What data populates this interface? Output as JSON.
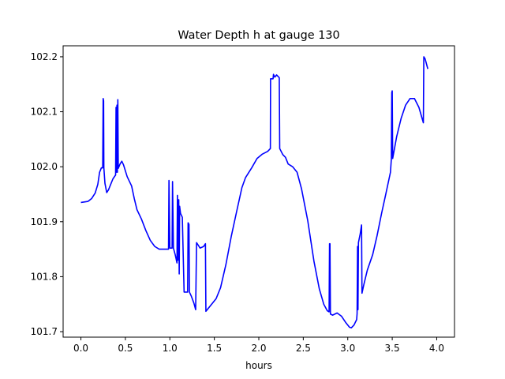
{
  "chart_data": {
    "type": "line",
    "title": "Water Depth h at gauge 130",
    "xlabel": "hours",
    "ylabel": "",
    "xlim": [
      -0.2,
      4.2
    ],
    "ylim": [
      101.69,
      102.22
    ],
    "x_ticks": [
      0.0,
      0.5,
      1.0,
      1.5,
      2.0,
      2.5,
      3.0,
      3.5,
      4.0
    ],
    "x_tick_labels": [
      "0.0",
      "0.5",
      "1.0",
      "1.5",
      "2.0",
      "2.5",
      "3.0",
      "3.5",
      "4.0"
    ],
    "y_ticks": [
      101.7,
      101.8,
      101.9,
      102.0,
      102.1,
      102.2
    ],
    "y_tick_labels": [
      "101.7",
      "101.8",
      "101.9",
      "102.0",
      "102.1",
      "102.2"
    ],
    "grid": false,
    "legend": "none",
    "series": [
      {
        "color": "#0000ff",
        "points": [
          [
            0.0,
            101.935
          ],
          [
            0.08,
            101.937
          ],
          [
            0.12,
            101.942
          ],
          [
            0.16,
            101.952
          ],
          [
            0.19,
            101.968
          ],
          [
            0.21,
            101.99
          ],
          [
            0.23,
            101.998
          ],
          [
            0.245,
            101.998
          ],
          [
            0.25,
            102.124
          ],
          [
            0.255,
            102.12
          ],
          [
            0.258,
            101.998
          ],
          [
            0.27,
            101.97
          ],
          [
            0.29,
            101.953
          ],
          [
            0.31,
            101.958
          ],
          [
            0.33,
            101.966
          ],
          [
            0.36,
            101.978
          ],
          [
            0.39,
            101.985
          ],
          [
            0.395,
            102.108
          ],
          [
            0.4,
            101.99
          ],
          [
            0.405,
            102.112
          ],
          [
            0.41,
            101.99
          ],
          [
            0.415,
            102.122
          ],
          [
            0.42,
            101.997
          ],
          [
            0.44,
            102.005
          ],
          [
            0.46,
            102.01
          ],
          [
            0.48,
            102.003
          ],
          [
            0.52,
            101.982
          ],
          [
            0.57,
            101.965
          ],
          [
            0.6,
            101.942
          ],
          [
            0.63,
            101.922
          ],
          [
            0.68,
            101.905
          ],
          [
            0.73,
            101.884
          ],
          [
            0.78,
            101.866
          ],
          [
            0.83,
            101.855
          ],
          [
            0.88,
            101.85
          ],
          [
            0.985,
            101.85
          ],
          [
            0.99,
            101.975
          ],
          [
            1.0,
            101.852
          ],
          [
            1.025,
            101.852
          ],
          [
            1.03,
            101.973
          ],
          [
            1.04,
            101.852
          ],
          [
            1.06,
            101.84
          ],
          [
            1.08,
            101.825
          ],
          [
            1.085,
            101.948
          ],
          [
            1.09,
            101.83
          ],
          [
            1.1,
            101.94
          ],
          [
            1.105,
            101.805
          ],
          [
            1.11,
            101.928
          ],
          [
            1.12,
            101.915
          ],
          [
            1.14,
            101.908
          ],
          [
            1.16,
            101.772
          ],
          [
            1.2,
            101.772
          ],
          [
            1.205,
            101.898
          ],
          [
            1.215,
            101.895
          ],
          [
            1.22,
            101.772
          ],
          [
            1.24,
            101.765
          ],
          [
            1.27,
            101.752
          ],
          [
            1.29,
            101.74
          ],
          [
            1.3,
            101.862
          ],
          [
            1.34,
            101.852
          ],
          [
            1.38,
            101.855
          ],
          [
            1.4,
            101.86
          ],
          [
            1.405,
            101.737
          ],
          [
            1.42,
            101.74
          ],
          [
            1.46,
            101.748
          ],
          [
            1.52,
            101.76
          ],
          [
            1.57,
            101.78
          ],
          [
            1.63,
            101.822
          ],
          [
            1.69,
            101.873
          ],
          [
            1.75,
            101.918
          ],
          [
            1.81,
            101.962
          ],
          [
            1.85,
            101.98
          ],
          [
            1.92,
            101.998
          ],
          [
            1.98,
            102.015
          ],
          [
            2.04,
            102.023
          ],
          [
            2.1,
            102.028
          ],
          [
            2.13,
            102.033
          ],
          [
            2.132,
            102.16
          ],
          [
            2.16,
            102.16
          ],
          [
            2.165,
            102.168
          ],
          [
            2.18,
            102.163
          ],
          [
            2.2,
            102.167
          ],
          [
            2.23,
            102.162
          ],
          [
            2.235,
            102.033
          ],
          [
            2.27,
            102.022
          ],
          [
            2.3,
            102.017
          ],
          [
            2.33,
            102.005
          ],
          [
            2.38,
            102.0
          ],
          [
            2.43,
            101.99
          ],
          [
            2.48,
            101.96
          ],
          [
            2.55,
            101.902
          ],
          [
            2.62,
            101.828
          ],
          [
            2.68,
            101.778
          ],
          [
            2.73,
            101.75
          ],
          [
            2.77,
            101.738
          ],
          [
            2.79,
            101.736
          ],
          [
            2.795,
            101.86
          ],
          [
            2.8,
            101.86
          ],
          [
            2.805,
            101.732
          ],
          [
            2.83,
            101.73
          ],
          [
            2.88,
            101.734
          ],
          [
            2.93,
            101.728
          ],
          [
            2.98,
            101.716
          ],
          [
            3.02,
            101.708
          ],
          [
            3.04,
            101.707
          ],
          [
            3.07,
            101.712
          ],
          [
            3.1,
            101.722
          ],
          [
            3.105,
            101.733
          ],
          [
            3.11,
            101.855
          ],
          [
            3.115,
            101.74
          ],
          [
            3.12,
            101.862
          ],
          [
            3.14,
            101.878
          ],
          [
            3.155,
            101.894
          ],
          [
            3.16,
            101.77
          ],
          [
            3.18,
            101.785
          ],
          [
            3.22,
            101.812
          ],
          [
            3.28,
            101.84
          ],
          [
            3.33,
            101.875
          ],
          [
            3.38,
            101.915
          ],
          [
            3.43,
            101.952
          ],
          [
            3.48,
            101.99
          ],
          [
            3.49,
            102.014
          ],
          [
            3.495,
            102.135
          ],
          [
            3.5,
            102.138
          ],
          [
            3.505,
            102.015
          ],
          [
            3.55,
            102.055
          ],
          [
            3.6,
            102.088
          ],
          [
            3.65,
            102.112
          ],
          [
            3.7,
            102.124
          ],
          [
            3.75,
            102.124
          ],
          [
            3.8,
            102.108
          ],
          [
            3.85,
            102.08
          ],
          [
            3.855,
            102.2
          ],
          [
            3.87,
            102.196
          ],
          [
            3.9,
            102.178
          ]
        ]
      }
    ]
  }
}
